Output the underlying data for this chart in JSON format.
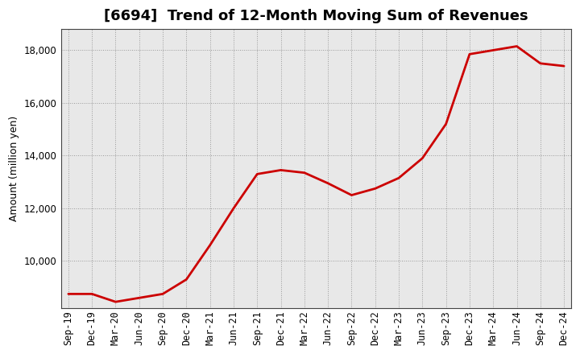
{
  "title": "[6694]  Trend of 12-Month Moving Sum of Revenues",
  "ylabel": "Amount (million yen)",
  "line_color": "#cc0000",
  "background_color": "#ffffff",
  "plot_bg_color": "#e8e8e8",
  "grid_color": "#999999",
  "ylim": [
    8200,
    18800
  ],
  "yticks": [
    10000,
    12000,
    14000,
    16000,
    18000
  ],
  "x_labels": [
    "Sep-19",
    "Dec-19",
    "Mar-20",
    "Jun-20",
    "Sep-20",
    "Dec-20",
    "Mar-21",
    "Jun-21",
    "Sep-21",
    "Dec-21",
    "Mar-22",
    "Jun-22",
    "Sep-22",
    "Dec-22",
    "Mar-23",
    "Jun-23",
    "Sep-23",
    "Dec-23",
    "Mar-24",
    "Jun-24",
    "Sep-24",
    "Dec-24"
  ],
  "values": [
    8750,
    8750,
    8450,
    8600,
    8750,
    9300,
    10600,
    12000,
    13300,
    13450,
    13350,
    12950,
    12500,
    12750,
    13150,
    13900,
    15200,
    17850,
    18000,
    18150,
    17500,
    17400
  ],
  "title_fontsize": 13,
  "ylabel_fontsize": 9,
  "tick_fontsize": 8.5
}
